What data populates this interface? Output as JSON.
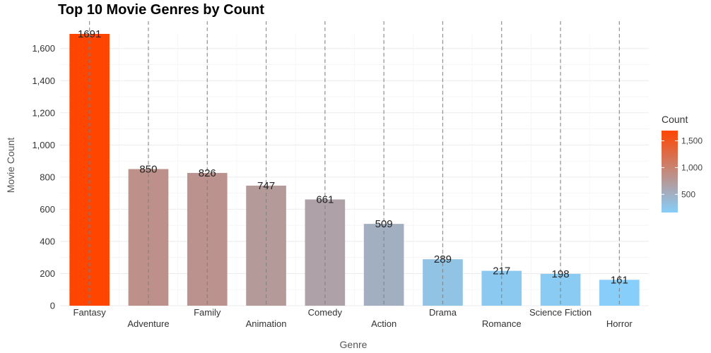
{
  "chart_data": {
    "type": "bar",
    "title": "Top 10 Movie Genres by Count",
    "xlabel": "Genre",
    "ylabel": "Movie Count",
    "categories": [
      "Fantasy",
      "Adventure",
      "Family",
      "Animation",
      "Comedy",
      "Action",
      "Drama",
      "Romance",
      "Science Fiction",
      "Horror"
    ],
    "values": [
      1691,
      850,
      826,
      747,
      661,
      509,
      289,
      217,
      198,
      161
    ],
    "data_labels": [
      "1691",
      "850",
      "826",
      "747",
      "661",
      "509",
      "289",
      "217",
      "198",
      "161"
    ],
    "ylim": [
      0,
      1691
    ],
    "yticks": [
      0,
      200,
      400,
      600,
      800,
      1000,
      1200,
      1400,
      1600
    ],
    "ytick_labels": [
      "0",
      "200",
      "400",
      "600",
      "800",
      "1,000",
      "1,200",
      "1,400",
      "1,600"
    ],
    "grid": true,
    "legend": {
      "title": "Count",
      "placement": "right",
      "ticks": [
        500,
        1000,
        1500
      ],
      "tick_labels": [
        "500",
        "1,000",
        "1,500"
      ],
      "range": [
        161,
        1691
      ],
      "color_low": "#87cefa",
      "color_high": "#ff4500"
    }
  }
}
